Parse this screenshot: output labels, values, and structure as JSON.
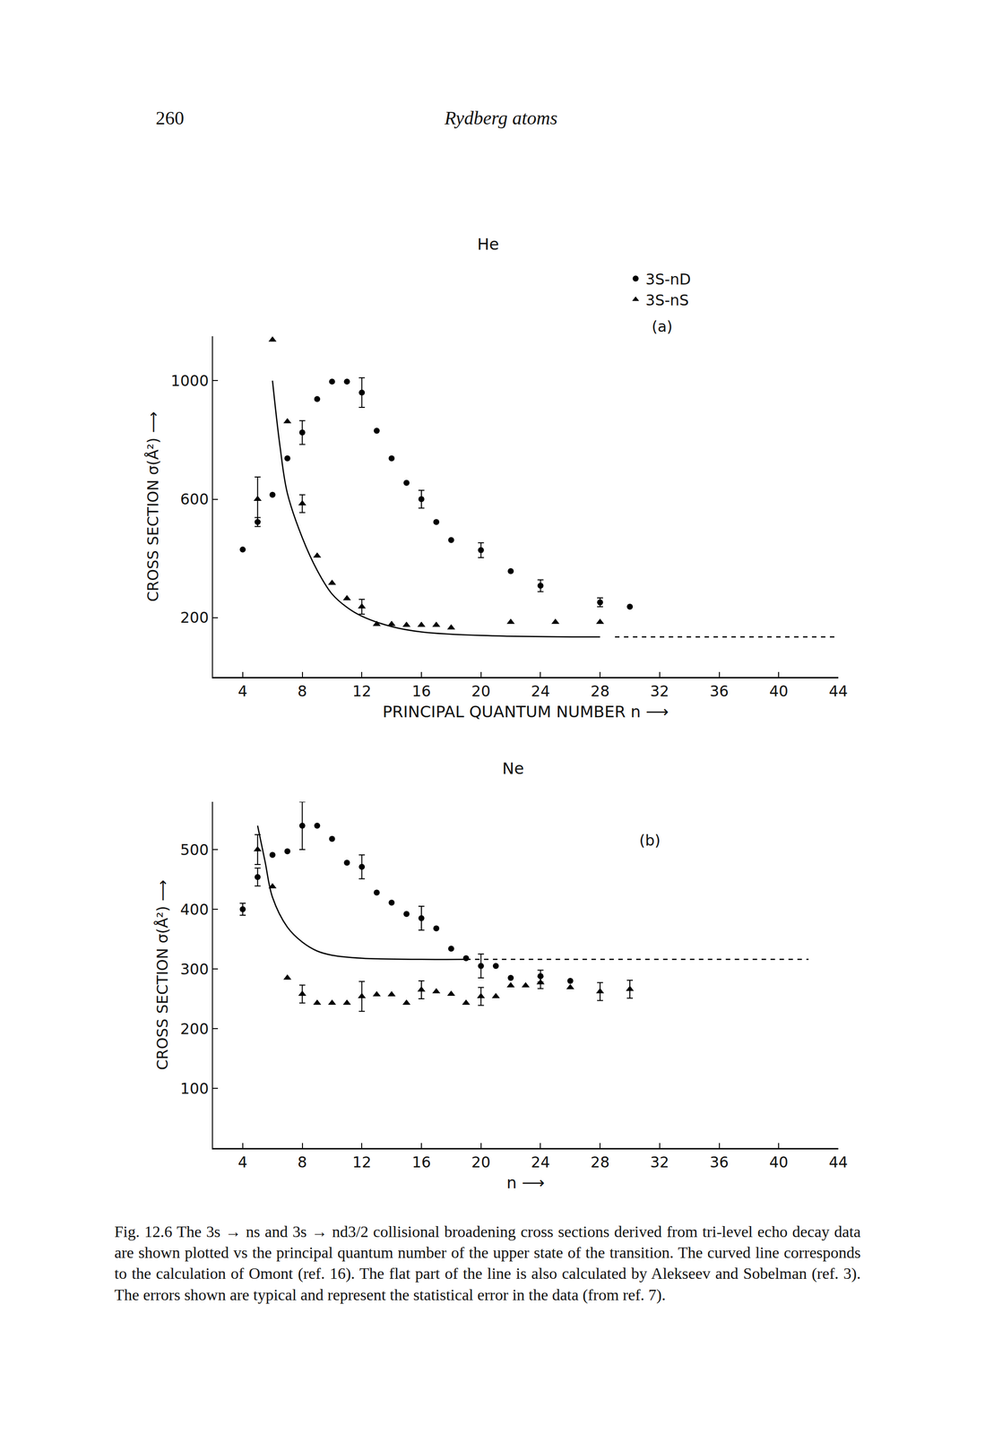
{
  "page": {
    "number": "260",
    "running_head": "Rydberg atoms"
  },
  "chart_data": [
    {
      "type": "scatter",
      "title": "He",
      "annotation": "(a)",
      "x_label": "PRINCIPAL QUANTUM NUMBER n ⟶",
      "y_label": "CROSS SECTION σ(Å²) ⟶",
      "xlim": [
        2,
        44
      ],
      "xticks": [
        4,
        8,
        12,
        16,
        20,
        24,
        28,
        32,
        36,
        40,
        44
      ],
      "ylim": [
        0,
        1150
      ],
      "yticks": [
        200,
        600,
        1000
      ],
      "legend": "top right",
      "series": [
        {
          "name": "3S-nD",
          "type": "scatter",
          "marker": "circle",
          "color": "#000000",
          "x": [
            4,
            5,
            6,
            7,
            8,
            9,
            10,
            11,
            12,
            13,
            14,
            15,
            16,
            17,
            18,
            20,
            22,
            24,
            28,
            30
          ],
          "values": [
            430,
            523,
            615,
            738,
            825,
            938,
            997,
            997,
            960,
            831,
            738,
            655,
            600,
            523,
            462,
            428,
            357,
            308,
            252,
            237
          ],
          "errors": [
            null,
            15,
            null,
            null,
            40,
            null,
            null,
            null,
            50,
            null,
            null,
            null,
            30,
            null,
            null,
            25,
            null,
            20,
            15,
            null
          ]
        },
        {
          "name": "3S-nS",
          "type": "scatter",
          "marker": "triangle-up",
          "color": "#000000",
          "x": [
            5,
            6,
            7,
            8,
            9,
            10,
            11,
            12,
            13,
            14,
            15,
            16,
            17,
            18,
            22,
            25,
            28
          ],
          "values": [
            600,
            1138,
            862,
            585,
            409,
            317,
            265,
            237,
            178,
            178,
            175,
            175,
            175,
            166,
            185,
            185,
            185
          ],
          "errors": [
            75,
            null,
            null,
            30,
            null,
            null,
            null,
            25,
            null,
            null,
            null,
            null,
            null,
            null,
            null,
            null,
            null
          ]
        },
        {
          "type": "line",
          "line_style": "solid",
          "color": "#000000",
          "x": [
            6,
            6.5,
            7,
            8,
            9,
            10,
            11,
            12,
            14,
            16,
            20,
            28
          ],
          "values": [
            1000,
            780,
            620,
            470,
            360,
            280,
            235,
            205,
            170,
            152,
            140,
            135
          ]
        },
        {
          "type": "line",
          "line_style": "dash",
          "color": "#000000",
          "x": [
            29,
            44
          ],
          "values": [
            135,
            135
          ]
        }
      ]
    },
    {
      "type": "scatter",
      "title": "Ne",
      "annotation": "(b)",
      "x_label": "n ⟶",
      "y_label": "CROSS SECTION σ(Å²) ⟶",
      "xlim": [
        2,
        44
      ],
      "xticks": [
        4,
        8,
        12,
        16,
        20,
        24,
        28,
        32,
        36,
        40,
        44
      ],
      "ylim": [
        0,
        580
      ],
      "yticks": [
        100,
        200,
        300,
        400,
        500
      ],
      "series": [
        {
          "name": "3S-nD",
          "type": "scatter",
          "marker": "circle",
          "color": "#000000",
          "x": [
            4,
            5,
            6,
            7,
            8,
            9,
            10,
            11,
            12,
            13,
            14,
            15,
            16,
            17,
            18,
            19,
            20,
            21,
            22,
            24,
            26
          ],
          "values": [
            400,
            454,
            491,
            497,
            540,
            540,
            518,
            478,
            471,
            428,
            411,
            392,
            385,
            368,
            334,
            318,
            305,
            305,
            285,
            288,
            280
          ],
          "errors": [
            10,
            15,
            null,
            null,
            40,
            null,
            null,
            null,
            20,
            null,
            null,
            null,
            20,
            null,
            null,
            null,
            20,
            null,
            null,
            10,
            null
          ]
        },
        {
          "name": "3S-nS",
          "type": "scatter",
          "marker": "triangle-up",
          "color": "#000000",
          "x": [
            5,
            6,
            7,
            8,
            9,
            10,
            11,
            12,
            13,
            14,
            15,
            16,
            17,
            18,
            19,
            20,
            21,
            22,
            23,
            24,
            26,
            28,
            30
          ],
          "values": [
            500,
            438,
            285,
            258,
            243,
            243,
            243,
            254,
            257,
            257,
            243,
            265,
            262,
            258,
            243,
            254,
            254,
            272,
            272,
            277,
            269,
            262,
            266
          ],
          "errors": [
            25,
            null,
            null,
            15,
            null,
            null,
            null,
            25,
            null,
            null,
            null,
            15,
            null,
            null,
            null,
            15,
            null,
            null,
            null,
            10,
            null,
            15,
            15
          ]
        },
        {
          "type": "line",
          "line_style": "solid",
          "color": "#000000",
          "x": [
            5,
            5.5,
            6,
            7,
            8,
            9,
            10,
            12,
            16,
            19
          ],
          "values": [
            540,
            480,
            420,
            370,
            345,
            330,
            323,
            318,
            316,
            316
          ]
        },
        {
          "type": "line",
          "line_style": "dash",
          "color": "#000000",
          "x": [
            19,
            42
          ],
          "values": [
            316,
            316
          ]
        }
      ]
    }
  ],
  "caption": "Fig. 12.6 The 3s → ns and 3s → nd3/2 collisional broadening cross sections derived from tri-level echo decay data are shown plotted vs the principal quantum number of the upper state of the transition. The curved line corresponds to the calculation of Omont (ref. 16). The flat part of the line is also calculated by Alekseev and Sobelman (ref. 3). The errors shown are typical and represent the statistical error in the data (from ref. 7)."
}
